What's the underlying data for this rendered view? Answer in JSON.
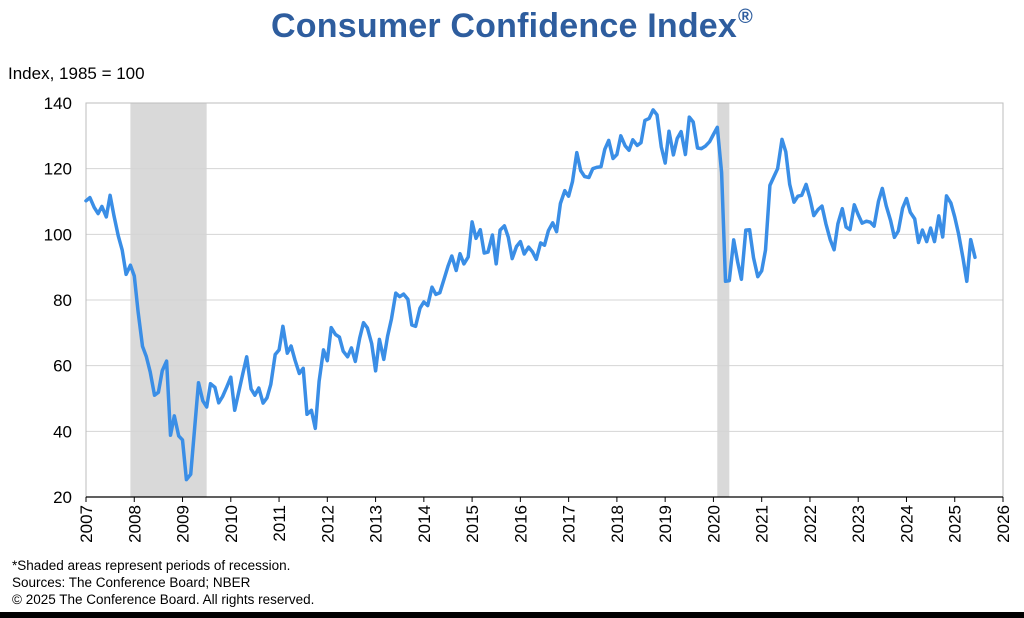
{
  "chart_data": {
    "type": "line",
    "title": "Consumer Confidence Index",
    "title_mark": "®",
    "unit_label": "Index, 1985 = 100",
    "xlim": [
      2007,
      2026
    ],
    "ylim": [
      20,
      140
    ],
    "yticks": [
      20,
      40,
      60,
      80,
      100,
      120,
      140
    ],
    "xticks": [
      "2007",
      "2008",
      "2009",
      "2010",
      "2011",
      "2012",
      "2013",
      "2014",
      "2015",
      "2016",
      "2017",
      "2018",
      "2019",
      "2020",
      "2021",
      "2022",
      "2023",
      "2024",
      "2025",
      "2026"
    ],
    "grid": true,
    "line_color": "#3a8ee6",
    "recession_color": "#d9d9d9",
    "recessions": [
      [
        2007.92,
        2009.5
      ],
      [
        2020.08,
        2020.33
      ]
    ],
    "series": [
      {
        "x": [
          2007.0,
          2007.08,
          2007.17,
          2007.25,
          2007.33,
          2007.42,
          2007.5,
          2007.58,
          2007.67,
          2007.75,
          2007.83,
          2007.92,
          2008.0,
          2008.08,
          2008.17,
          2008.25,
          2008.33,
          2008.42,
          2008.5,
          2008.58,
          2008.67,
          2008.75,
          2008.83,
          2008.92,
          2009.0,
          2009.08,
          2009.17,
          2009.25,
          2009.33,
          2009.42,
          2009.5,
          2009.58,
          2009.67,
          2009.75,
          2009.83,
          2009.92,
          2010.0,
          2010.08,
          2010.17,
          2010.25,
          2010.33,
          2010.42,
          2010.5,
          2010.58,
          2010.67,
          2010.75,
          2010.83,
          2010.92,
          2011.0,
          2011.08,
          2011.17,
          2011.25,
          2011.33,
          2011.42,
          2011.5,
          2011.58,
          2011.67,
          2011.75,
          2011.83,
          2011.92,
          2012.0,
          2012.08,
          2012.17,
          2012.25,
          2012.33,
          2012.42,
          2012.5,
          2012.58,
          2012.67,
          2012.75,
          2012.83,
          2012.92,
          2013.0,
          2013.08,
          2013.17,
          2013.25,
          2013.33,
          2013.42,
          2013.5,
          2013.58,
          2013.67,
          2013.75,
          2013.83,
          2013.92,
          2014.0,
          2014.08,
          2014.17,
          2014.25,
          2014.33,
          2014.42,
          2014.5,
          2014.58,
          2014.67,
          2014.75,
          2014.83,
          2014.92,
          2015.0,
          2015.08,
          2015.17,
          2015.25,
          2015.33,
          2015.42,
          2015.5,
          2015.58,
          2015.67,
          2015.75,
          2015.83,
          2015.92,
          2016.0,
          2016.08,
          2016.17,
          2016.25,
          2016.33,
          2016.42,
          2016.5,
          2016.58,
          2016.67,
          2016.75,
          2016.83,
          2016.92,
          2017.0,
          2017.08,
          2017.17,
          2017.25,
          2017.33,
          2017.42,
          2017.5,
          2017.58,
          2017.67,
          2017.75,
          2017.83,
          2017.92,
          2018.0,
          2018.08,
          2018.17,
          2018.25,
          2018.33,
          2018.42,
          2018.5,
          2018.58,
          2018.67,
          2018.75,
          2018.83,
          2018.92,
          2019.0,
          2019.08,
          2019.17,
          2019.25,
          2019.33,
          2019.42,
          2019.5,
          2019.58,
          2019.67,
          2019.75,
          2019.83,
          2019.92,
          2020.0,
          2020.08,
          2020.17,
          2020.25,
          2020.33,
          2020.42,
          2020.5,
          2020.58,
          2020.67,
          2020.75,
          2020.83,
          2020.92,
          2021.0,
          2021.08,
          2021.17,
          2021.25,
          2021.33,
          2021.42,
          2021.5,
          2021.58,
          2021.67,
          2021.75,
          2021.83,
          2021.92,
          2022.0,
          2022.08,
          2022.17,
          2022.25,
          2022.33,
          2022.42,
          2022.5,
          2022.58,
          2022.67,
          2022.75,
          2022.83,
          2022.92,
          2023.0,
          2023.08,
          2023.17,
          2023.25,
          2023.33,
          2023.42,
          2023.5,
          2023.58,
          2023.67,
          2023.75,
          2023.83,
          2023.92,
          2024.0,
          2024.08,
          2024.17,
          2024.25,
          2024.33,
          2024.42,
          2024.5,
          2024.58,
          2024.67,
          2024.75,
          2024.83,
          2024.92,
          2025.0,
          2025.08,
          2025.17,
          2025.25,
          2025.33,
          2025.42
        ],
        "values": [
          110.2,
          111.2,
          108.2,
          106.3,
          108.5,
          105.3,
          111.9,
          105.6,
          99.5,
          95.2,
          87.8,
          90.6,
          87.3,
          76.4,
          65.9,
          62.8,
          58.1,
          51.0,
          51.9,
          58.5,
          61.4,
          38.8,
          44.7,
          38.6,
          37.4,
          25.3,
          26.9,
          40.8,
          54.8,
          49.3,
          47.4,
          54.5,
          53.4,
          48.7,
          50.6,
          53.6,
          56.5,
          46.4,
          52.3,
          57.7,
          62.7,
          52.9,
          51.0,
          53.2,
          48.6,
          50.2,
          54.3,
          63.4,
          64.8,
          72.0,
          63.8,
          66.0,
          61.7,
          57.6,
          59.2,
          45.2,
          46.4,
          40.9,
          55.2,
          64.8,
          61.5,
          71.6,
          69.5,
          68.7,
          64.4,
          62.7,
          65.4,
          61.3,
          68.4,
          73.1,
          71.5,
          66.7,
          58.4,
          68.0,
          61.9,
          69.0,
          74.3,
          82.1,
          81.0,
          81.8,
          80.2,
          72.4,
          72.0,
          77.5,
          79.4,
          78.3,
          83.9,
          81.7,
          82.2,
          86.4,
          90.3,
          93.4,
          89.0,
          94.1,
          91.0,
          93.1,
          103.8,
          98.8,
          101.4,
          94.3,
          94.6,
          99.8,
          91.0,
          101.3,
          102.6,
          99.1,
          92.6,
          96.3,
          97.8,
          94.0,
          96.1,
          94.7,
          92.4,
          97.4,
          96.7,
          101.1,
          103.5,
          100.8,
          109.4,
          113.3,
          111.6,
          116.1,
          124.9,
          119.4,
          117.6,
          117.3,
          120.0,
          120.4,
          120.6,
          125.9,
          128.6,
          123.1,
          124.3,
          130.0,
          127.0,
          125.6,
          128.8,
          127.1,
          127.9,
          134.7,
          135.3,
          137.9,
          136.4,
          126.6,
          121.7,
          131.4,
          124.2,
          129.2,
          131.3,
          124.3,
          135.7,
          134.2,
          126.3,
          126.1,
          126.8,
          128.2,
          130.4,
          132.6,
          118.8,
          85.7,
          85.9,
          98.3,
          91.7,
          86.3,
          101.3,
          101.4,
          92.9,
          87.1,
          88.9,
          95.2,
          114.9,
          117.5,
          120.0,
          128.9,
          125.1,
          115.2,
          109.8,
          111.6,
          111.9,
          115.2,
          111.1,
          105.7,
          107.6,
          108.6,
          103.2,
          98.4,
          95.3,
          103.2,
          107.8,
          102.2,
          101.4,
          109.0,
          106.0,
          103.4,
          104.0,
          103.7,
          102.5,
          110.1,
          114.0,
          108.7,
          104.3,
          99.1,
          101.0,
          108.0,
          110.9,
          106.7,
          104.7,
          97.5,
          101.3,
          97.8,
          101.9,
          97.8,
          105.6,
          99.2,
          111.7,
          109.5,
          105.3,
          100.1,
          92.9,
          85.7,
          98.4,
          93.0
        ]
      }
    ]
  },
  "footnotes": [
    "*Shaded areas represent periods of recession.",
    "Sources:  The Conference Board;  NBER",
    "© 2025 The Conference Board. All rights reserved."
  ]
}
